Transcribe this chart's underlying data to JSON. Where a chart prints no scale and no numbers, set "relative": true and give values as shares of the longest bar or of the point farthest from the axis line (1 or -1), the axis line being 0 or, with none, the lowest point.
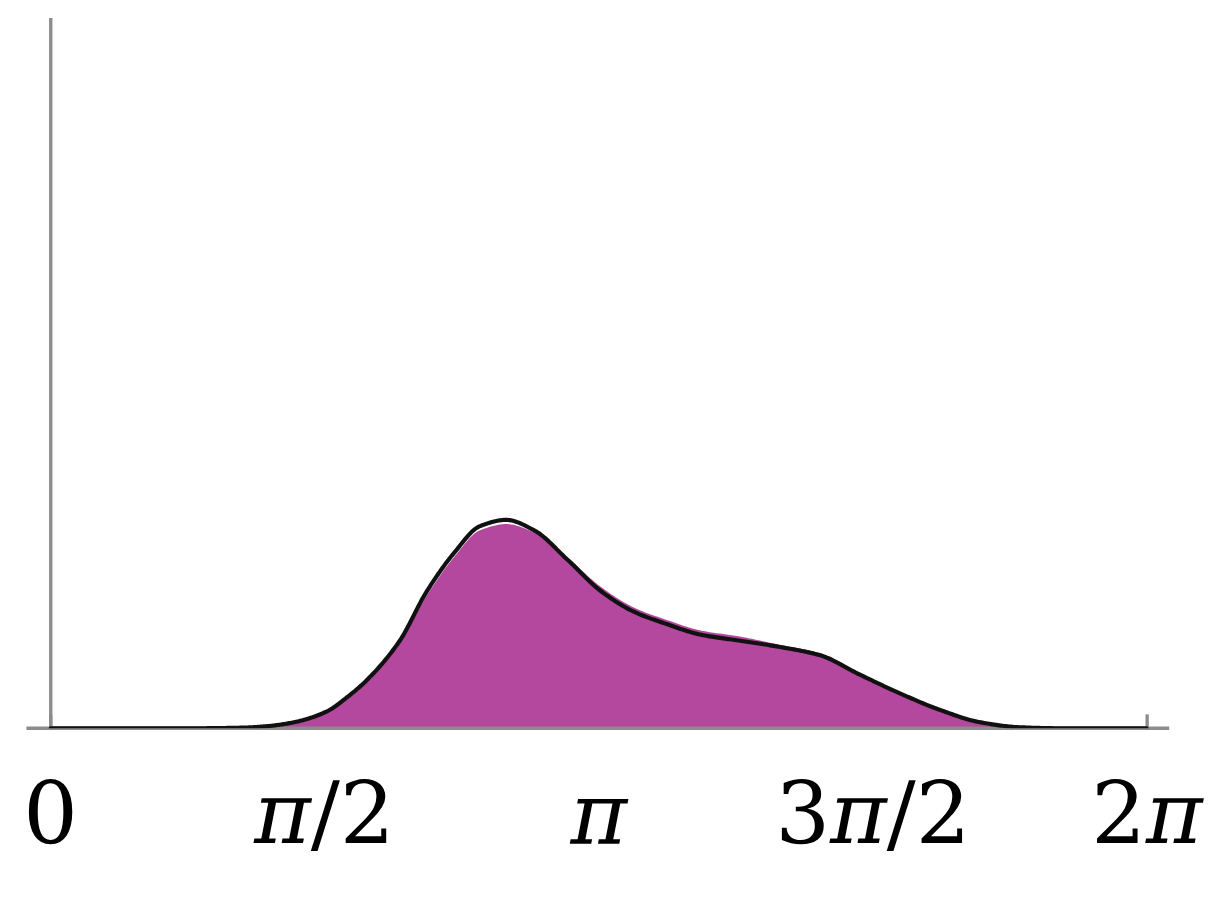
{
  "chart_data": {
    "type": "area",
    "relative": true,
    "xlim": [
      -0.13,
      6.4
    ],
    "xticks": [
      0,
      {
        "value": 1.5708,
        "label": "π/2"
      },
      {
        "value": 3.1416,
        "label": "π"
      },
      {
        "value": 4.7124,
        "label": "3π/2"
      },
      {
        "value": 6.2832,
        "label": "2π"
      }
    ],
    "series": [
      {
        "color": "#b4479e",
        "x": [
          1.2,
          1.4,
          1.58,
          1.7,
          1.81,
          2.0,
          2.15,
          2.31,
          2.46,
          2.61,
          2.77,
          2.96,
          3.15,
          3.34,
          3.53,
          3.72,
          3.95,
          4.18,
          4.41,
          4.63,
          4.86,
          5.09,
          5.32,
          5.6
        ],
        "values": [
          0.005,
          0.025,
          0.075,
          0.14,
          0.22,
          0.41,
          0.63,
          0.82,
          0.95,
          0.98,
          0.94,
          0.82,
          0.68,
          0.58,
          0.52,
          0.47,
          0.44,
          0.4,
          0.36,
          0.27,
          0.17,
          0.09,
          0.03,
          0
        ]
      },
      {
        "type": "line",
        "color": "#111111",
        "x": [
          0,
          0.8,
          1.1,
          1.24,
          1.4,
          1.58,
          1.7,
          1.81,
          2.0,
          2.15,
          2.31,
          2.46,
          2.61,
          2.77,
          2.96,
          3.15,
          3.34,
          3.53,
          3.72,
          3.95,
          4.18,
          4.41,
          4.63,
          4.86,
          5.09,
          5.32,
          5.55,
          5.8,
          6.28
        ],
        "values": [
          0,
          0,
          0.003,
          0.01,
          0.03,
          0.08,
          0.15,
          0.23,
          0.42,
          0.65,
          0.84,
          0.97,
          1.0,
          0.95,
          0.81,
          0.66,
          0.56,
          0.5,
          0.45,
          0.42,
          0.39,
          0.35,
          0.26,
          0.17,
          0.09,
          0.03,
          0.005,
          0,
          0
        ]
      }
    ]
  }
}
